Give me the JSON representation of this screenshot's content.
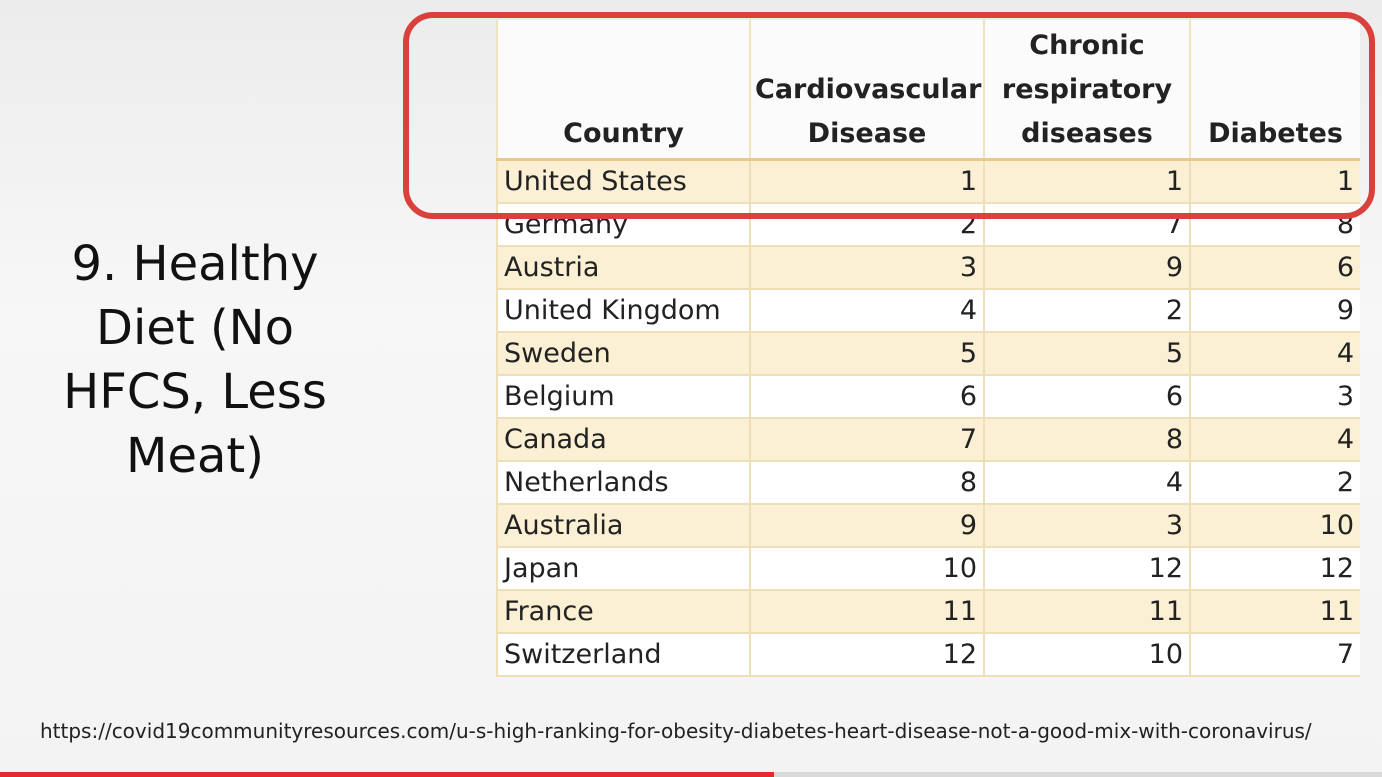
{
  "slide": {
    "title": "9. Healthy\nDiet (No\nHFCS, Less\nMeat)",
    "source_url": "https://covid19communityresources.com/u-s-high-ranking-for-obesity-diabetes-heart-disease-not-a-good-mix-with-coronavirus/"
  },
  "table": {
    "headers": [
      "Country",
      "Cardiovascular\nDisease",
      "Chronic\nrespiratory\ndiseases",
      "Diabetes"
    ],
    "rows": [
      [
        "United States",
        "1",
        "1",
        "1"
      ],
      [
        "Germany",
        "2",
        "7",
        "8"
      ],
      [
        "Austria",
        "3",
        "9",
        "6"
      ],
      [
        "United Kingdom",
        "4",
        "2",
        "9"
      ],
      [
        "Sweden",
        "5",
        "5",
        "4"
      ],
      [
        "Belgium",
        "6",
        "6",
        "3"
      ],
      [
        "Canada",
        "7",
        "8",
        "4"
      ],
      [
        "Netherlands",
        "8",
        "4",
        "2"
      ],
      [
        "Australia",
        "9",
        "3",
        "10"
      ],
      [
        "Japan",
        "10",
        "12",
        "12"
      ],
      [
        "France",
        "11",
        "11",
        "11"
      ],
      [
        "Switzerland",
        "12",
        "10",
        "7"
      ]
    ]
  },
  "highlight": {
    "color": "#d9413c"
  },
  "video_progress": {
    "fraction": 0.56,
    "color": "#e32b2b"
  }
}
